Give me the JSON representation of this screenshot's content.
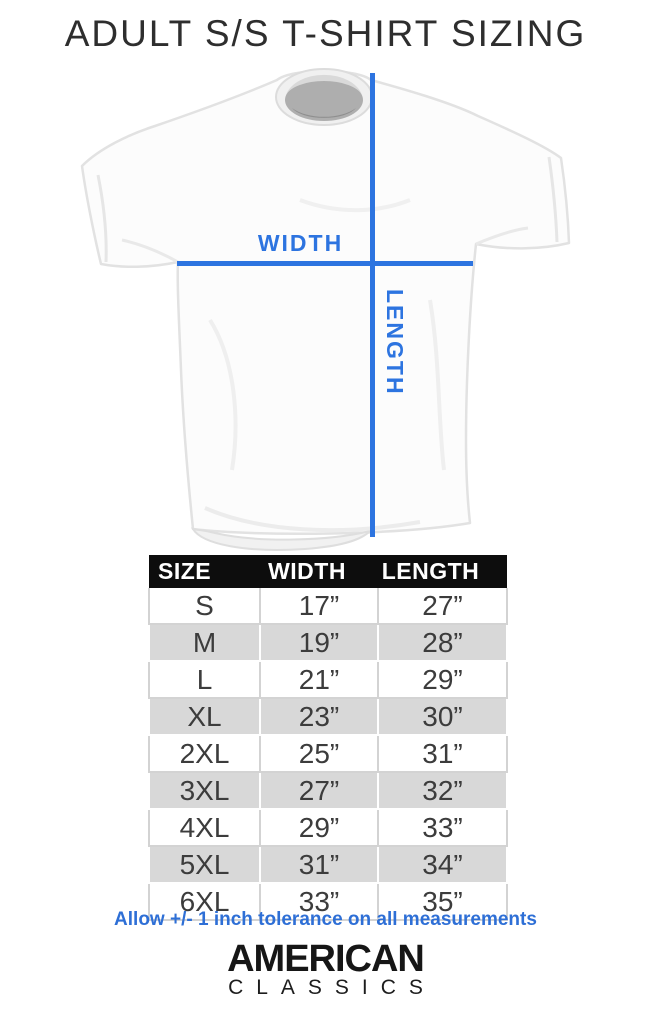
{
  "title": "ADULT S/S T-SHIRT SIZING",
  "diagram": {
    "width_label": "WIDTH",
    "length_label": "LENGTH"
  },
  "chart_data": {
    "type": "table",
    "title": "ADULT S/S T-SHIRT SIZING",
    "columns": [
      "SIZE",
      "WIDTH",
      "LENGTH"
    ],
    "rows": [
      [
        "S",
        "17”",
        "27”"
      ],
      [
        "M",
        "19”",
        "28”"
      ],
      [
        "L",
        "21”",
        "29”"
      ],
      [
        "XL",
        "23”",
        "30”"
      ],
      [
        "2XL",
        "25”",
        "31”"
      ],
      [
        "3XL",
        "27”",
        "32”"
      ],
      [
        "4XL",
        "29”",
        "33”"
      ],
      [
        "5XL",
        "31”",
        "34”"
      ],
      [
        "6XL",
        "33”",
        "35”"
      ]
    ],
    "footnote": "Allow +/- 1 inch tolerance on all measurements",
    "legend_position": "none",
    "grid": true
  },
  "brand": {
    "line1": "AMERICAN",
    "line2": "CLASSICS"
  },
  "colors": {
    "accent_blue": "#2d74e0",
    "table_header_bg": "#0d0d0d",
    "table_row_alt": "#d8d8d8"
  }
}
